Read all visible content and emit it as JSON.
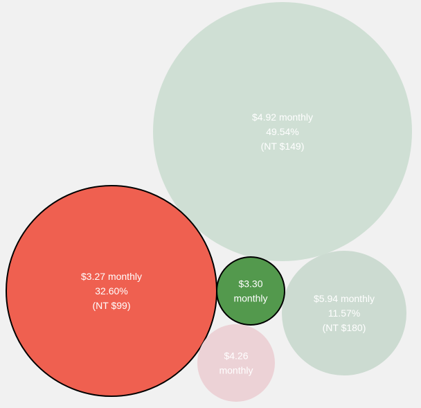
{
  "chart_data": {
    "type": "bubble",
    "title": "",
    "series": [
      {
        "name": "",
        "label": [
          "$4.92 monthly",
          "49.54%",
          "(NT $149)"
        ],
        "price_usd_monthly": 4.92,
        "share_percent": 49.54,
        "price_ntd": 149,
        "color": "#cfdfd4",
        "text_color": "#ffffff",
        "highlighted": false
      },
      {
        "name": "",
        "label": [
          "$3.27 monthly",
          "32.60%",
          "(NT $99)"
        ],
        "price_usd_monthly": 3.27,
        "share_percent": 32.6,
        "price_ntd": 99,
        "color": "#ef6050",
        "text_color": "#ffffff",
        "highlighted": true
      },
      {
        "name": "",
        "label": [
          "$5.94 monthly",
          "11.57%",
          "(NT $180)"
        ],
        "price_usd_monthly": 5.94,
        "share_percent": 11.57,
        "price_ntd": 180,
        "color": "#ccdbd1",
        "text_color": "#ffffff",
        "highlighted": false
      },
      {
        "name": "",
        "label": [
          "$3.30",
          "monthly"
        ],
        "price_usd_monthly": 3.3,
        "color": "#53994d",
        "text_color": "#ffffff",
        "highlighted": true
      },
      {
        "name": "",
        "label": [
          "$4.26",
          "monthly"
        ],
        "price_usd_monthly": 4.26,
        "color": "#ecd2d6",
        "text_color": "#ffffff",
        "highlighted": false
      }
    ]
  }
}
